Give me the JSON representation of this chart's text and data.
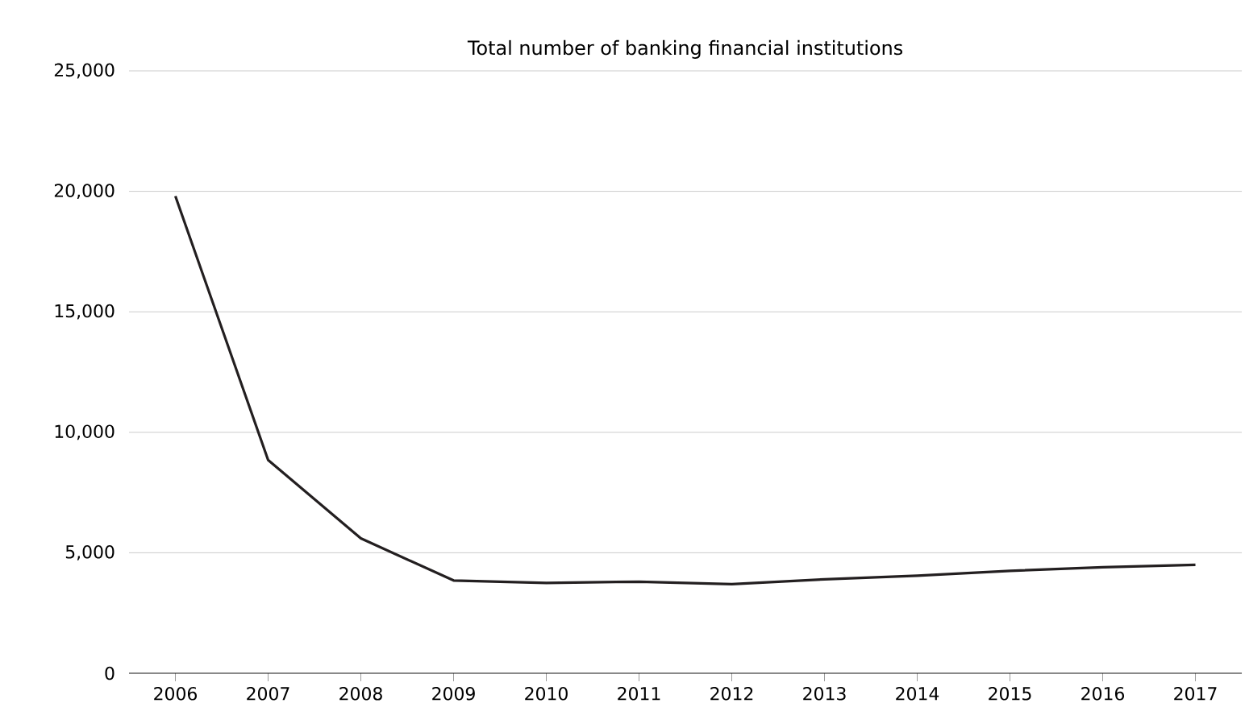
{
  "chart_data": {
    "type": "line",
    "title": "Total number of banking financial institutions",
    "categories": [
      "2006",
      "2007",
      "2008",
      "2009",
      "2010",
      "2011",
      "2012",
      "2013",
      "2014",
      "2015",
      "2016",
      "2017"
    ],
    "series": [
      {
        "color": "#231f20",
        "values": [
          19800,
          8850,
          5600,
          3850,
          3750,
          3800,
          3700,
          3900,
          4050,
          4250,
          4400,
          4500
        ]
      }
    ],
    "ylim": [
      0,
      25000
    ],
    "yticks": [
      {
        "value": 0,
        "label": "0"
      },
      {
        "value": 5000,
        "label": "5,000"
      },
      {
        "value": 10000,
        "label": "10,000"
      },
      {
        "value": 15000,
        "label": "15,000"
      },
      {
        "value": 20000,
        "label": "20,000"
      },
      {
        "value": 25000,
        "label": "25,000"
      }
    ],
    "grid": "y",
    "marker": "none",
    "line_style": "solid"
  }
}
